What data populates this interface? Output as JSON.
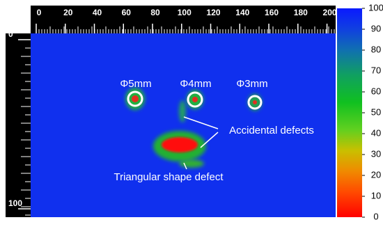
{
  "chart_data": {
    "type": "heatmap",
    "xlim": [
      0,
      205
    ],
    "xticks": [
      0,
      20,
      40,
      60,
      80,
      100,
      120,
      140,
      160,
      180,
      200
    ],
    "ylim": [
      0,
      100
    ],
    "yticks": [
      0,
      100
    ],
    "colorbar": {
      "lim": [
        0,
        100
      ],
      "ticks": [
        0,
        10,
        20,
        30,
        40,
        50,
        60,
        70,
        80,
        90,
        100
      ]
    },
    "annotations": [
      "Φ5mm",
      "Φ4mm",
      "Φ3mm",
      "Accidental defects",
      "Triangular shape defect"
    ]
  }
}
